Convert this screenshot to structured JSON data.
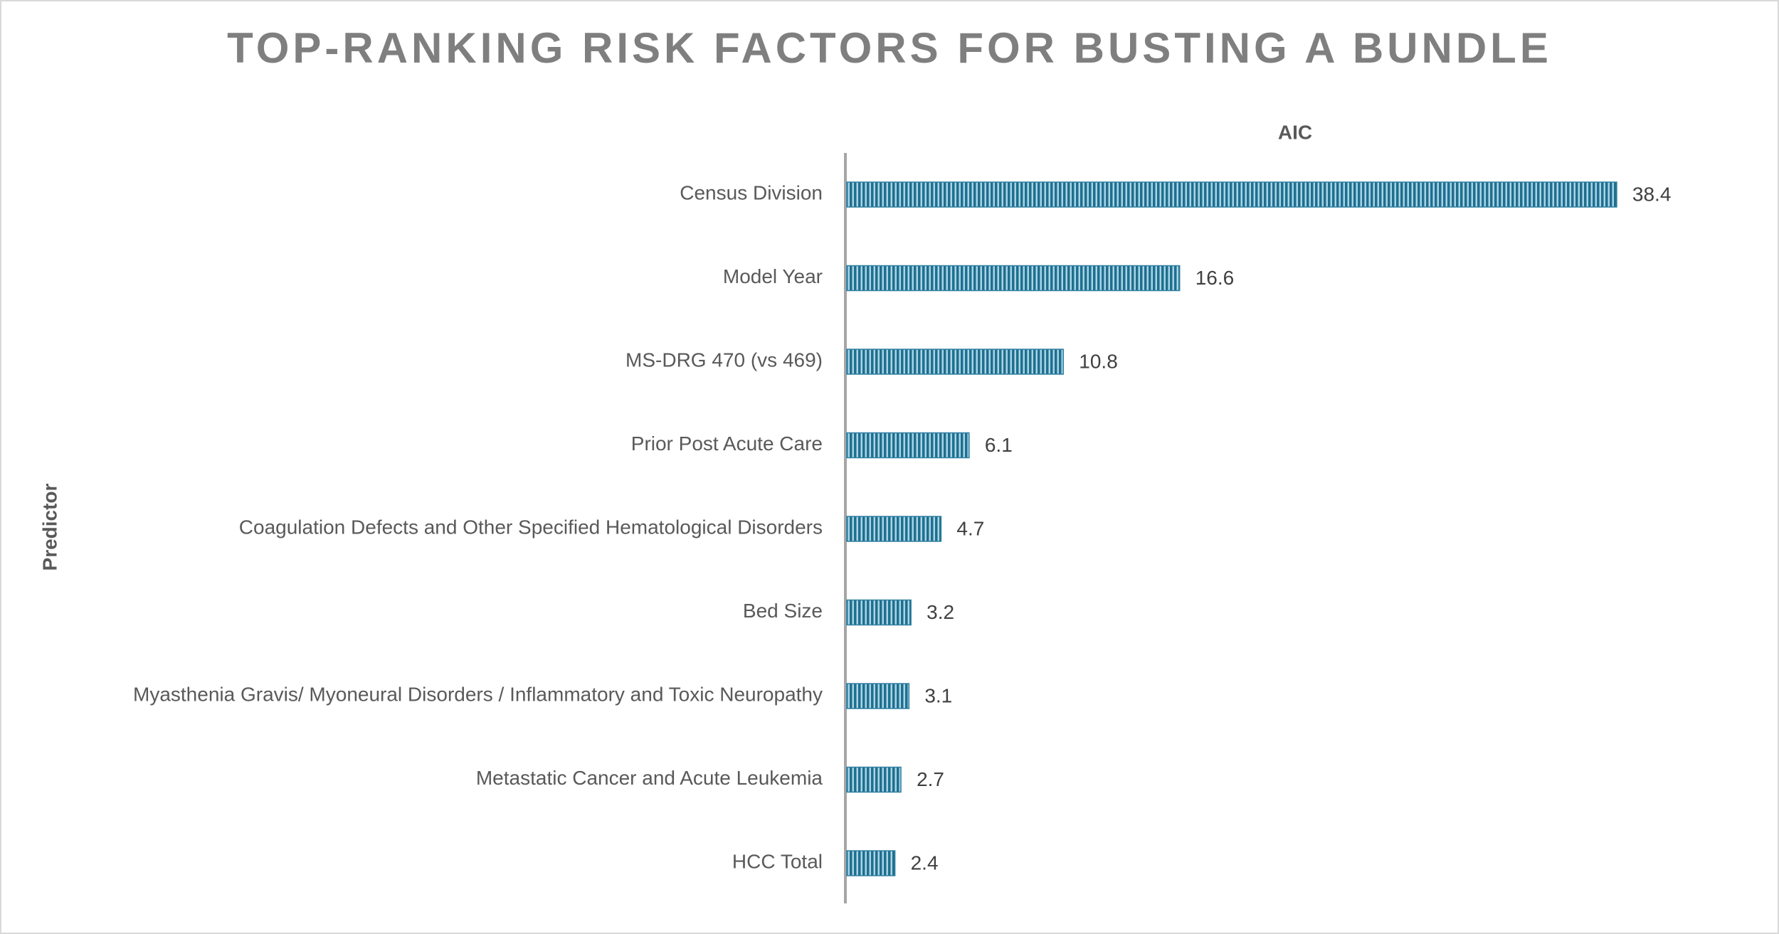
{
  "chart_data": {
    "type": "barh",
    "title": "TOP-RANKING RISK FACTORS FOR BUSTING A BUNDLE",
    "x_label": "AIC",
    "y_label": "Predictor",
    "categories": [
      "Census Division",
      "Model Year",
      "MS-DRG 470 (vs 469)",
      "Prior Post Acute Care",
      "Coagulation Defects and Other Specified Hematological Disorders",
      "Bed Size",
      "Myasthenia Gravis/ Myoneural Disorders / Inflammatory and Toxic Neuropathy",
      "Metastatic Cancer and Acute Leukemia",
      "HCC Total"
    ],
    "values": [
      38.4,
      16.6,
      10.8,
      6.1,
      4.7,
      3.2,
      3.1,
      2.7,
      2.4
    ],
    "color": "#2e7fa0",
    "xlim": [
      0,
      40
    ]
  }
}
